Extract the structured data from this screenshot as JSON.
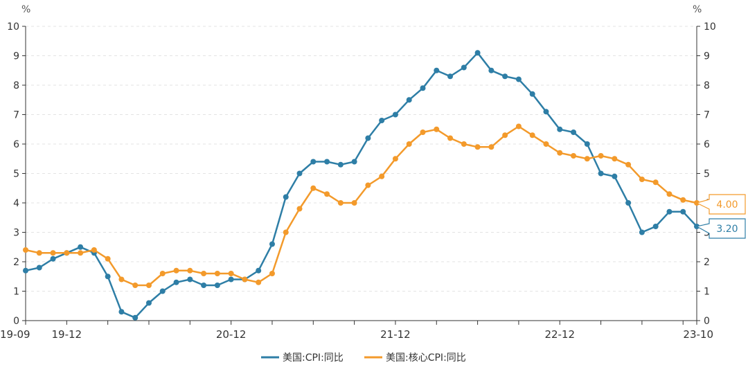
{
  "chart_data": {
    "type": "line",
    "y_unit_left": "%",
    "y_unit_right": "%",
    "ylim": [
      0,
      10
    ],
    "y_ticks": [
      "0",
      "1",
      "2",
      "3",
      "4",
      "5",
      "6",
      "7",
      "8",
      "9",
      "10"
    ],
    "x_range": [
      "19-09",
      "23-10"
    ],
    "x_tick_labels": [
      "19-09",
      "19-12",
      "20-12",
      "21-12",
      "22-12",
      "23-10"
    ],
    "x": [
      "19-09",
      "19-10",
      "19-11",
      "19-12",
      "20-01",
      "20-02",
      "20-03",
      "20-04",
      "20-05",
      "20-06",
      "20-07",
      "20-08",
      "20-09",
      "20-10",
      "20-11",
      "20-12",
      "21-01",
      "21-02",
      "21-03",
      "21-04",
      "21-05",
      "21-06",
      "21-07",
      "21-08",
      "21-09",
      "21-10",
      "21-11",
      "21-12",
      "22-01",
      "22-02",
      "22-03",
      "22-04",
      "22-05",
      "22-06",
      "22-07",
      "22-08",
      "22-09",
      "22-10",
      "22-11",
      "22-12",
      "23-01",
      "23-02",
      "23-03",
      "23-04",
      "23-05",
      "23-06",
      "23-07",
      "23-08",
      "23-09",
      "23-10"
    ],
    "series": [
      {
        "name": "美国:CPI:同比",
        "color": "#2e7ea6",
        "values": [
          1.7,
          1.8,
          2.1,
          2.3,
          2.5,
          2.3,
          1.5,
          0.3,
          0.1,
          0.6,
          1.0,
          1.3,
          1.4,
          1.2,
          1.2,
          1.4,
          1.4,
          1.7,
          2.6,
          4.2,
          5.0,
          5.4,
          5.4,
          5.3,
          5.4,
          6.2,
          6.8,
          7.0,
          7.5,
          7.9,
          8.5,
          8.3,
          8.6,
          9.1,
          8.5,
          8.3,
          8.2,
          7.7,
          7.1,
          6.5,
          6.4,
          6.0,
          5.0,
          4.9,
          4.0,
          3.0,
          3.2,
          3.7,
          3.7,
          3.2
        ],
        "end_label": "3.20"
      },
      {
        "name": "美国:核心CPI:同比",
        "color": "#f39a2b",
        "values": [
          2.4,
          2.3,
          2.3,
          2.3,
          2.3,
          2.4,
          2.1,
          1.4,
          1.2,
          1.2,
          1.6,
          1.7,
          1.7,
          1.6,
          1.6,
          1.6,
          1.4,
          1.3,
          1.6,
          3.0,
          3.8,
          4.5,
          4.3,
          4.0,
          4.0,
          4.6,
          4.9,
          5.5,
          6.0,
          6.4,
          6.5,
          6.2,
          6.0,
          5.9,
          5.9,
          6.3,
          6.6,
          6.3,
          6.0,
          5.7,
          5.6,
          5.5,
          5.6,
          5.5,
          5.3,
          4.8,
          4.7,
          4.3,
          4.1,
          4.0
        ],
        "end_label": "4.00"
      }
    ],
    "legend_placement": "bottom-center",
    "grid": true
  }
}
